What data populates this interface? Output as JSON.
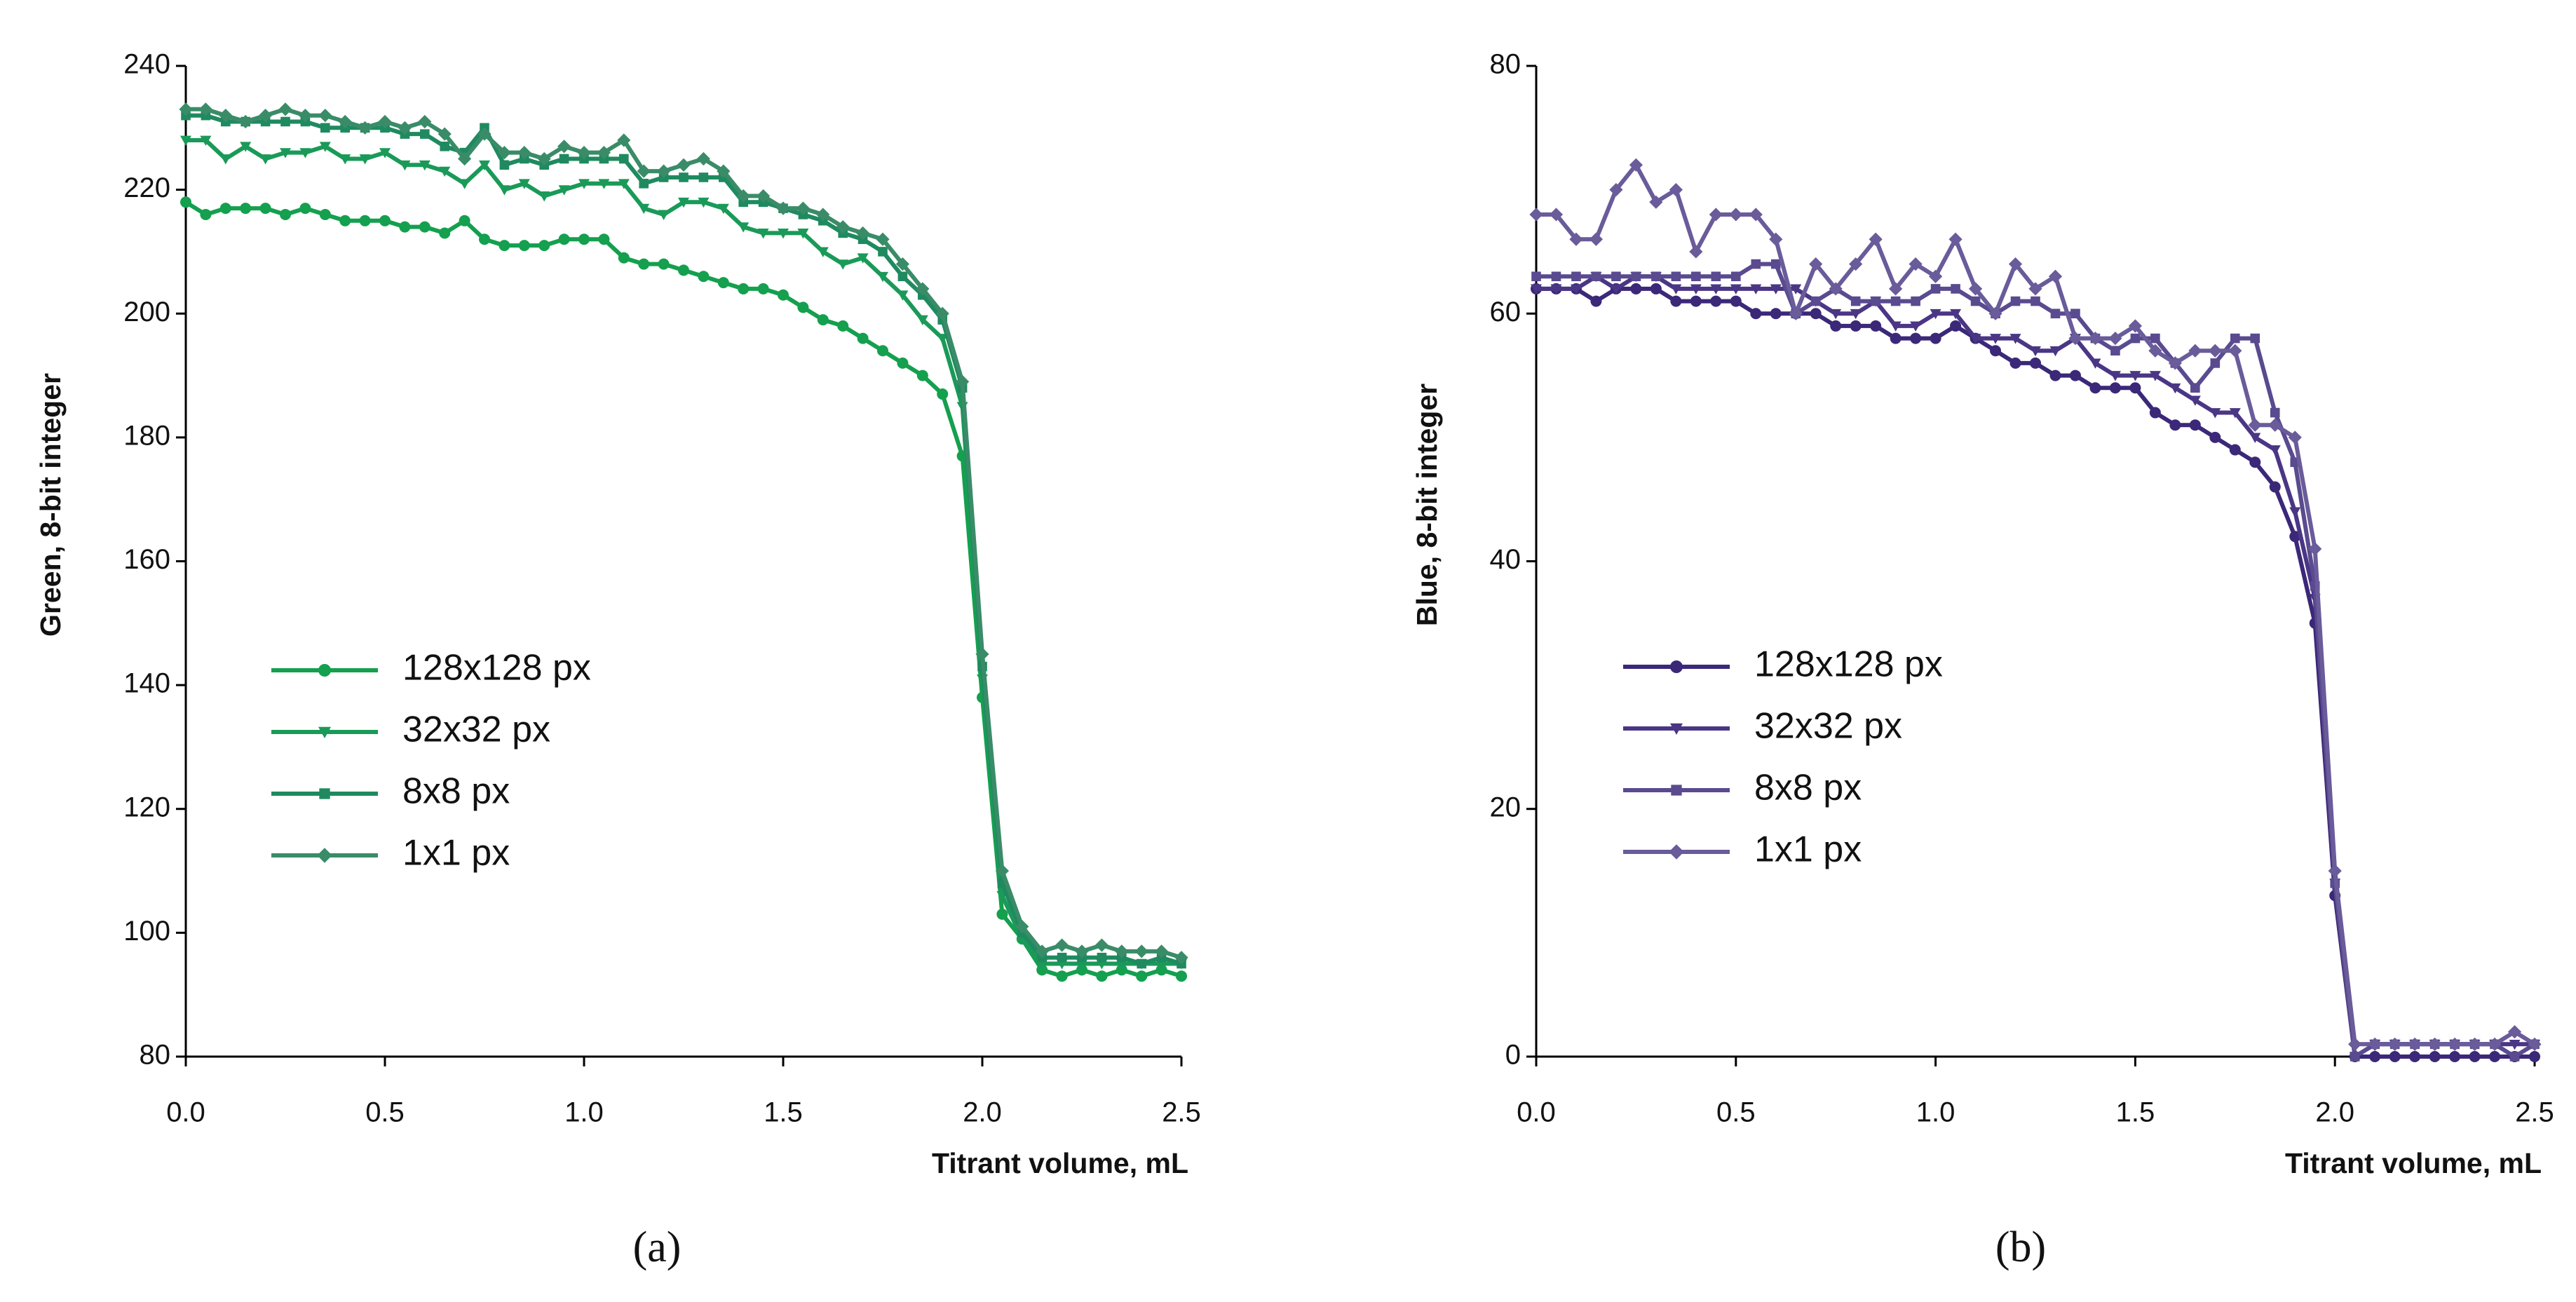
{
  "chart_data": [
    {
      "type": "line",
      "caption": "(a)",
      "xlabel": "Titrant volume, mL",
      "ylabel": "Green, 8-bit integer",
      "xlim": [
        0,
        2.5
      ],
      "ylim": [
        80,
        240
      ],
      "xticks": [
        {
          "value": 0,
          "label": "0.0"
        },
        {
          "value": 0.5,
          "label": "0.5"
        },
        {
          "value": 1,
          "label": "1.0"
        },
        {
          "value": 1.5,
          "label": "1.5"
        },
        {
          "value": 2,
          "label": "2.0"
        },
        {
          "value": 2.5,
          "label": "2.5"
        }
      ],
      "yticks": [
        80,
        100,
        120,
        140,
        160,
        180,
        200,
        220,
        240
      ],
      "x": [
        0,
        0.05,
        0.1,
        0.15,
        0.2,
        0.25,
        0.3,
        0.35,
        0.4,
        0.45,
        0.5,
        0.55,
        0.6,
        0.65,
        0.7,
        0.75,
        0.8,
        0.85,
        0.9,
        0.95,
        1,
        1.05,
        1.1,
        1.15,
        1.2,
        1.25,
        1.3,
        1.35,
        1.4,
        1.45,
        1.5,
        1.55,
        1.6,
        1.65,
        1.7,
        1.75,
        1.8,
        1.85,
        1.9,
        1.95,
        2,
        2.05,
        2.1,
        2.15,
        2.2,
        2.25,
        2.3,
        2.35,
        2.4,
        2.45,
        2.5
      ],
      "series": [
        {
          "name": "128x128 px",
          "color": "#14a04e",
          "marker": "circle",
          "values": [
            218,
            216,
            217,
            217,
            217,
            216,
            217,
            216,
            215,
            215,
            215,
            214,
            214,
            213,
            215,
            212,
            211,
            211,
            211,
            212,
            212,
            212,
            209,
            208,
            208,
            207,
            206,
            205,
            204,
            204,
            203,
            201,
            199,
            198,
            196,
            194,
            192,
            190,
            187,
            177,
            138,
            103,
            99,
            94,
            93,
            94,
            93,
            94,
            93,
            94,
            93
          ]
        },
        {
          "name": "32x32 px",
          "color": "#1a9a58",
          "marker": "triangle",
          "values": [
            228,
            228,
            225,
            227,
            225,
            226,
            226,
            227,
            225,
            225,
            226,
            224,
            224,
            223,
            221,
            224,
            220,
            221,
            219,
            220,
            221,
            221,
            221,
            217,
            216,
            218,
            218,
            217,
            214,
            213,
            213,
            213,
            210,
            208,
            209,
            206,
            203,
            199,
            196,
            185,
            141,
            106,
            99,
            95,
            95,
            95,
            95,
            95,
            95,
            95,
            95
          ]
        },
        {
          "name": "8x8 px",
          "color": "#1f8a60",
          "marker": "square",
          "values": [
            232,
            232,
            231,
            231,
            231,
            231,
            231,
            230,
            230,
            230,
            230,
            229,
            229,
            227,
            226,
            230,
            224,
            225,
            224,
            225,
            225,
            225,
            225,
            221,
            222,
            222,
            222,
            222,
            218,
            218,
            217,
            216,
            215,
            213,
            212,
            210,
            206,
            203,
            199,
            188,
            143,
            108,
            100,
            96,
            96,
            96,
            96,
            96,
            95,
            96,
            95
          ]
        },
        {
          "name": "1x1 px",
          "color": "#3a8c68",
          "marker": "diamond",
          "values": [
            233,
            233,
            232,
            231,
            232,
            233,
            232,
            232,
            231,
            230,
            231,
            230,
            231,
            229,
            225,
            229,
            226,
            226,
            225,
            227,
            226,
            226,
            228,
            223,
            223,
            224,
            225,
            223,
            219,
            219,
            217,
            217,
            216,
            214,
            213,
            212,
            208,
            204,
            200,
            189,
            145,
            110,
            101,
            97,
            98,
            97,
            98,
            97,
            97,
            97,
            96
          ]
        }
      ]
    },
    {
      "type": "line",
      "caption": "(b)",
      "xlabel": "Titrant volume, mL",
      "ylabel": "Blue, 8-bit integer",
      "xlim": [
        0,
        2.5
      ],
      "ylim": [
        0,
        80
      ],
      "xticks": [
        {
          "value": 0,
          "label": "0.0"
        },
        {
          "value": 0.5,
          "label": "0.5"
        },
        {
          "value": 1,
          "label": "1.0"
        },
        {
          "value": 1.5,
          "label": "1.5"
        },
        {
          "value": 2,
          "label": "2.0"
        },
        {
          "value": 2.5,
          "label": "2.5"
        }
      ],
      "yticks": [
        0,
        20,
        40,
        60,
        80
      ],
      "x": [
        0,
        0.05,
        0.1,
        0.15,
        0.2,
        0.25,
        0.3,
        0.35,
        0.4,
        0.45,
        0.5,
        0.55,
        0.6,
        0.65,
        0.7,
        0.75,
        0.8,
        0.85,
        0.9,
        0.95,
        1,
        1.05,
        1.1,
        1.15,
        1.2,
        1.25,
        1.3,
        1.35,
        1.4,
        1.45,
        1.5,
        1.55,
        1.6,
        1.65,
        1.7,
        1.75,
        1.8,
        1.85,
        1.9,
        1.95,
        2,
        2.05,
        2.1,
        2.15,
        2.2,
        2.25,
        2.3,
        2.35,
        2.4,
        2.45,
        2.5
      ],
      "series": [
        {
          "name": "128x128 px",
          "color": "#3b2878",
          "marker": "circle",
          "values": [
            62,
            62,
            62,
            61,
            62,
            62,
            62,
            61,
            61,
            61,
            61,
            60,
            60,
            60,
            60,
            59,
            59,
            59,
            58,
            58,
            58,
            59,
            58,
            57,
            56,
            56,
            55,
            55,
            54,
            54,
            54,
            52,
            51,
            51,
            50,
            49,
            48,
            46,
            42,
            35,
            13,
            0,
            0,
            0,
            0,
            0,
            0,
            0,
            0,
            0,
            0
          ]
        },
        {
          "name": "32x32 px",
          "color": "#4a3685",
          "marker": "triangle",
          "values": [
            62,
            62,
            62,
            63,
            62,
            63,
            63,
            62,
            62,
            62,
            62,
            62,
            62,
            62,
            61,
            60,
            60,
            61,
            59,
            59,
            60,
            60,
            58,
            58,
            58,
            57,
            57,
            58,
            56,
            55,
            55,
            55,
            54,
            53,
            52,
            52,
            50,
            49,
            44,
            37,
            14,
            0,
            1,
            1,
            1,
            1,
            1,
            1,
            1,
            1,
            1
          ]
        },
        {
          "name": "8x8 px",
          "color": "#5a4a8f",
          "marker": "square",
          "values": [
            63,
            63,
            63,
            63,
            63,
            63,
            63,
            63,
            63,
            63,
            63,
            64,
            64,
            60,
            61,
            62,
            61,
            61,
            61,
            61,
            62,
            62,
            61,
            60,
            61,
            61,
            60,
            60,
            58,
            57,
            58,
            58,
            56,
            54,
            56,
            58,
            58,
            52,
            48,
            38,
            14,
            0,
            1,
            1,
            1,
            1,
            1,
            1,
            1,
            0,
            1
          ]
        },
        {
          "name": "1x1 px",
          "color": "#6a5b9a",
          "marker": "diamond",
          "values": [
            68,
            68,
            66,
            66,
            70,
            72,
            69,
            70,
            65,
            68,
            68,
            68,
            66,
            60,
            64,
            62,
            64,
            66,
            62,
            64,
            63,
            66,
            62,
            60,
            64,
            62,
            63,
            58,
            58,
            58,
            59,
            57,
            56,
            57,
            57,
            57,
            51,
            51,
            50,
            41,
            15,
            1,
            1,
            1,
            1,
            1,
            1,
            1,
            1,
            2,
            1
          ]
        }
      ]
    }
  ]
}
